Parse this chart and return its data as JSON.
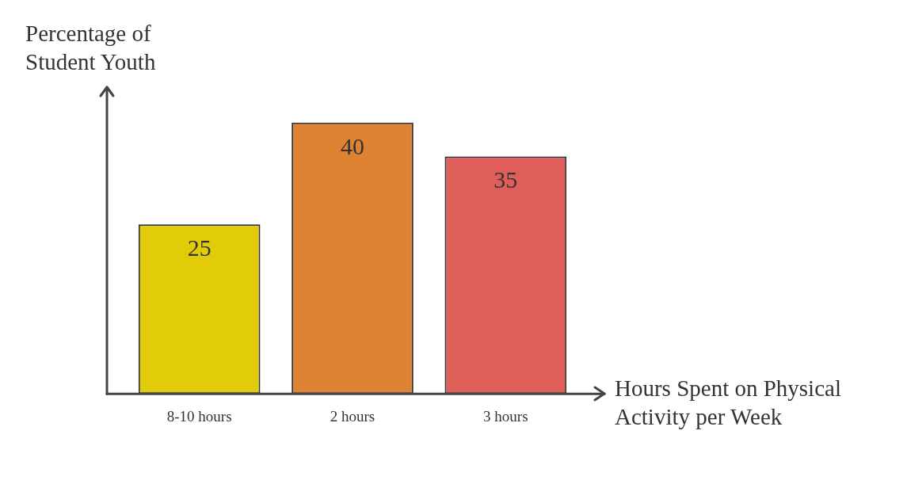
{
  "chart_data": {
    "type": "bar",
    "xlabel": "Hours Spent on Physical Activity per Week",
    "ylabel": "Percentage of Student Youth",
    "categories": [
      "8-10 hours",
      "2 hours",
      "3 hours"
    ],
    "values": [
      25,
      40,
      35
    ],
    "colors": [
      "#e2cc0a",
      "#dd8333",
      "#e05e5a"
    ],
    "tick_labels": "x",
    "grid": false,
    "legend": false,
    "data_labels": true
  }
}
